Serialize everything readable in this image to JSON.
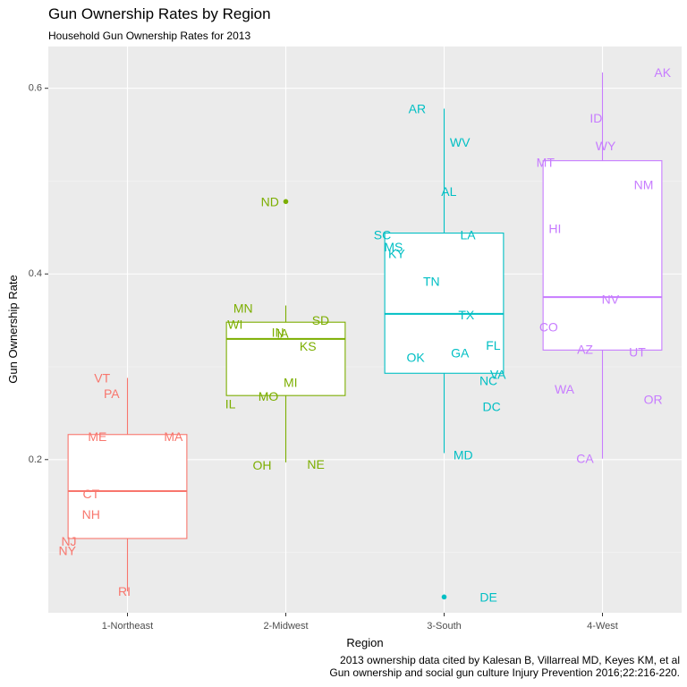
{
  "chart_data": {
    "type": "boxplot",
    "title": "Gun Ownership Rates by Region",
    "subtitle": "Household Gun Ownership Rates for 2013",
    "xlabel": "Region",
    "ylabel": "Gun Ownership Rate",
    "ylim": [
      0.035,
      0.645
    ],
    "yticks": [
      0.2,
      0.4,
      0.6
    ],
    "ytick_labels": [
      "0.2",
      "0.4",
      "0.6"
    ],
    "grid": true,
    "legend": "none",
    "caption": [
      "2013 ownership data cited by Kalesan B, Villarreal MD, Keyes KM, et al",
      "Gun ownership and social gun culture Injury Prevention 2016;22:216-220."
    ],
    "categories": [
      "1-Northeast",
      "2-Midwest",
      "3-South",
      "4-West"
    ],
    "colors": [
      "#F8766D",
      "#7CAE00",
      "#00BFC4",
      "#C77CFF"
    ],
    "boxes": [
      {
        "category": "1-Northeast",
        "q1": 0.115,
        "median": 0.166,
        "q3": 0.227,
        "whisker_low": 0.058,
        "whisker_high": 0.288,
        "outliers": []
      },
      {
        "category": "2-Midwest",
        "q1": 0.269,
        "median": 0.33,
        "q3": 0.348,
        "whisker_low": 0.197,
        "whisker_high": 0.366,
        "outliers": [
          0.478
        ]
      },
      {
        "category": "3-South",
        "q1": 0.293,
        "median": 0.357,
        "q3": 0.444,
        "whisker_low": 0.207,
        "whisker_high": 0.578,
        "outliers": [
          0.052
        ]
      },
      {
        "category": "4-West",
        "q1": 0.318,
        "median": 0.375,
        "q3": 0.522,
        "whisker_low": 0.201,
        "whisker_high": 0.617,
        "outliers": []
      }
    ],
    "points": [
      {
        "state": "VT",
        "region": 0,
        "dx": -0.16,
        "value": 0.288
      },
      {
        "state": "PA",
        "region": 0,
        "dx": -0.1,
        "value": 0.271
      },
      {
        "state": "ME",
        "region": 0,
        "dx": -0.19,
        "value": 0.225
      },
      {
        "state": "MA",
        "region": 0,
        "dx": 0.29,
        "value": 0.225
      },
      {
        "state": "CT",
        "region": 0,
        "dx": -0.23,
        "value": 0.163
      },
      {
        "state": "NH",
        "region": 0,
        "dx": -0.23,
        "value": 0.141
      },
      {
        "state": "NJ",
        "region": 0,
        "dx": -0.37,
        "value": 0.112
      },
      {
        "state": "NY",
        "region": 0,
        "dx": -0.38,
        "value": 0.102
      },
      {
        "state": "RI",
        "region": 0,
        "dx": -0.02,
        "value": 0.058
      },
      {
        "state": "ND",
        "region": 1,
        "dx": -0.1,
        "value": 0.478
      },
      {
        "state": "MN",
        "region": 1,
        "dx": -0.27,
        "value": 0.363
      },
      {
        "state": "SD",
        "region": 1,
        "dx": 0.22,
        "value": 0.35
      },
      {
        "state": "WI",
        "region": 1,
        "dx": -0.32,
        "value": 0.346
      },
      {
        "state": "IN",
        "region": 1,
        "dx": -0.05,
        "value": 0.337
      },
      {
        "state": "IA",
        "region": 1,
        "dx": -0.02,
        "value": 0.336
      },
      {
        "state": "KS",
        "region": 1,
        "dx": 0.14,
        "value": 0.322
      },
      {
        "state": "MI",
        "region": 1,
        "dx": 0.03,
        "value": 0.283
      },
      {
        "state": "MO",
        "region": 1,
        "dx": -0.11,
        "value": 0.268
      },
      {
        "state": "IL",
        "region": 1,
        "dx": -0.35,
        "value": 0.26
      },
      {
        "state": "OH",
        "region": 1,
        "dx": -0.15,
        "value": 0.194
      },
      {
        "state": "NE",
        "region": 1,
        "dx": 0.19,
        "value": 0.195
      },
      {
        "state": "AR",
        "region": 2,
        "dx": -0.17,
        "value": 0.578
      },
      {
        "state": "WV",
        "region": 2,
        "dx": 0.1,
        "value": 0.542
      },
      {
        "state": "AL",
        "region": 2,
        "dx": 0.03,
        "value": 0.489
      },
      {
        "state": "SC",
        "region": 2,
        "dx": -0.39,
        "value": 0.442
      },
      {
        "state": "LA",
        "region": 2,
        "dx": 0.15,
        "value": 0.442
      },
      {
        "state": "MS",
        "region": 2,
        "dx": -0.32,
        "value": 0.429
      },
      {
        "state": "KY",
        "region": 2,
        "dx": -0.3,
        "value": 0.422
      },
      {
        "state": "TN",
        "region": 2,
        "dx": -0.08,
        "value": 0.392
      },
      {
        "state": "TX",
        "region": 2,
        "dx": 0.14,
        "value": 0.356
      },
      {
        "state": "FL",
        "region": 2,
        "dx": 0.31,
        "value": 0.323
      },
      {
        "state": "OK",
        "region": 2,
        "dx": -0.18,
        "value": 0.31
      },
      {
        "state": "GA",
        "region": 2,
        "dx": 0.1,
        "value": 0.315
      },
      {
        "state": "VA",
        "region": 2,
        "dx": 0.34,
        "value": 0.292
      },
      {
        "state": "NC",
        "region": 2,
        "dx": 0.28,
        "value": 0.285
      },
      {
        "state": "DC",
        "region": 2,
        "dx": 0.3,
        "value": 0.257
      },
      {
        "state": "MD",
        "region": 2,
        "dx": 0.12,
        "value": 0.205
      },
      {
        "state": "DE",
        "region": 2,
        "dx": 0.28,
        "value": 0.052
      },
      {
        "state": "AK",
        "region": 3,
        "dx": 0.38,
        "value": 0.617
      },
      {
        "state": "ID",
        "region": 3,
        "dx": -0.04,
        "value": 0.568
      },
      {
        "state": "WY",
        "region": 3,
        "dx": 0.02,
        "value": 0.538
      },
      {
        "state": "MT",
        "region": 3,
        "dx": -0.36,
        "value": 0.52
      },
      {
        "state": "NM",
        "region": 3,
        "dx": 0.26,
        "value": 0.496
      },
      {
        "state": "HI",
        "region": 3,
        "dx": -0.3,
        "value": 0.449
      },
      {
        "state": "NV",
        "region": 3,
        "dx": 0.05,
        "value": 0.373
      },
      {
        "state": "CO",
        "region": 3,
        "dx": -0.34,
        "value": 0.343
      },
      {
        "state": "AZ",
        "region": 3,
        "dx": -0.11,
        "value": 0.319
      },
      {
        "state": "UT",
        "region": 3,
        "dx": 0.22,
        "value": 0.316
      },
      {
        "state": "WA",
        "region": 3,
        "dx": -0.24,
        "value": 0.276
      },
      {
        "state": "OR",
        "region": 3,
        "dx": 0.32,
        "value": 0.265
      },
      {
        "state": "CA",
        "region": 3,
        "dx": -0.11,
        "value": 0.201
      }
    ]
  }
}
